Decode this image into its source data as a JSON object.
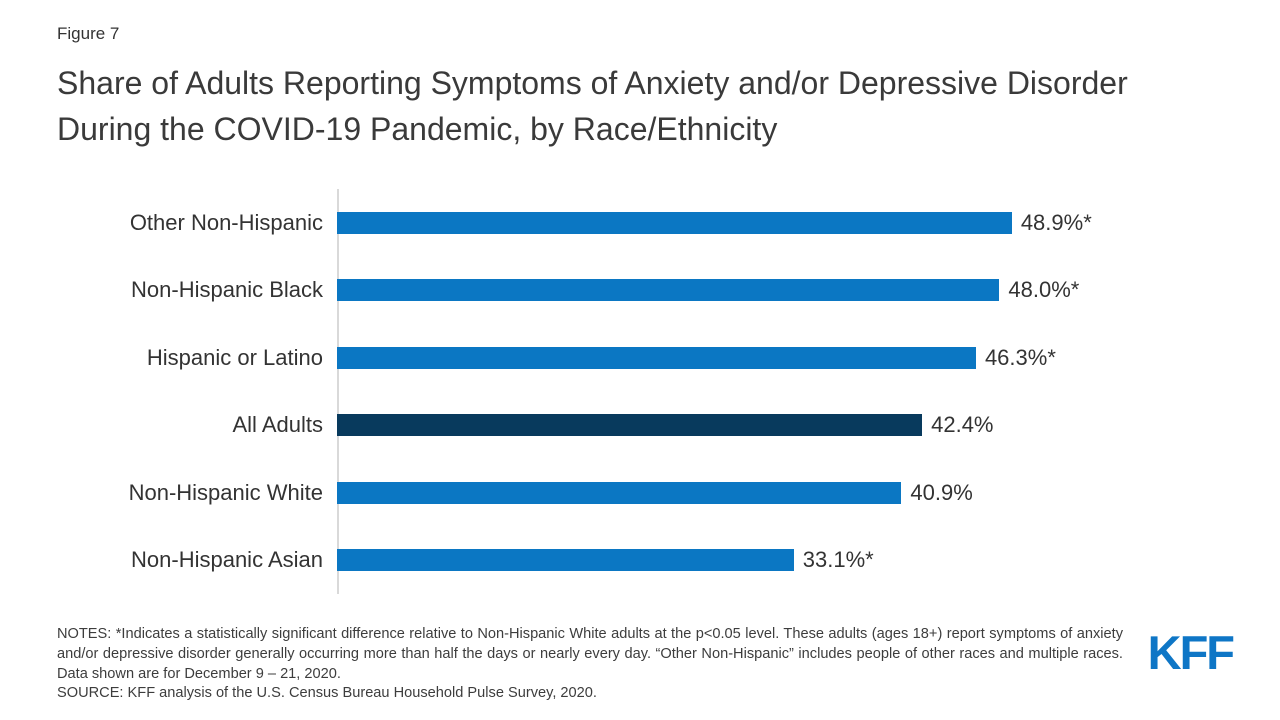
{
  "figure_label": "Figure 7",
  "title": "Share of Adults Reporting Symptoms of Anxiety and/or Depressive Disorder During the COVID-19 Pandemic, by Race/Ethnicity",
  "chart_data": {
    "type": "bar",
    "orientation": "horizontal",
    "title": "Share of Adults Reporting Symptoms of Anxiety and/or Depressive Disorder During the COVID-19 Pandemic, by Race/Ethnicity",
    "categories": [
      "Other Non-Hispanic",
      "Non-Hispanic Black",
      "Hispanic or Latino",
      "All Adults",
      "Non-Hispanic White",
      "Non-Hispanic Asian"
    ],
    "values": [
      48.9,
      48.0,
      46.3,
      42.4,
      40.9,
      33.1
    ],
    "value_labels": [
      "48.9%*",
      "48.0%*",
      "46.3%*",
      "42.4%",
      "40.9%",
      "33.1%*"
    ],
    "highlight_index": 3,
    "xlim": [
      0,
      50
    ],
    "xlabel": "",
    "ylabel": "",
    "grid": false,
    "legend": false,
    "bar_color": "#0b77c3",
    "highlight_bar_color": "#083a5d",
    "axis_line_color": "#d9d9d9"
  },
  "notes": {
    "notes_text": "NOTES: *Indicates a statistically significant difference relative to Non-Hispanic White adults at the p<0.05 level. These adults (ages 18+) report symptoms of anxiety and/or depressive disorder generally occurring more than half the days or nearly every day. “Other Non-Hispanic” includes people of other races and multiple races. Data shown are for December 9 – 21, 2020.",
    "source_text": "SOURCE: KFF analysis of the U.S. Census Bureau Household Pulse Survey, 2020."
  },
  "branding": {
    "logo_text": "KFF",
    "logo_color": "#0e76c6"
  }
}
